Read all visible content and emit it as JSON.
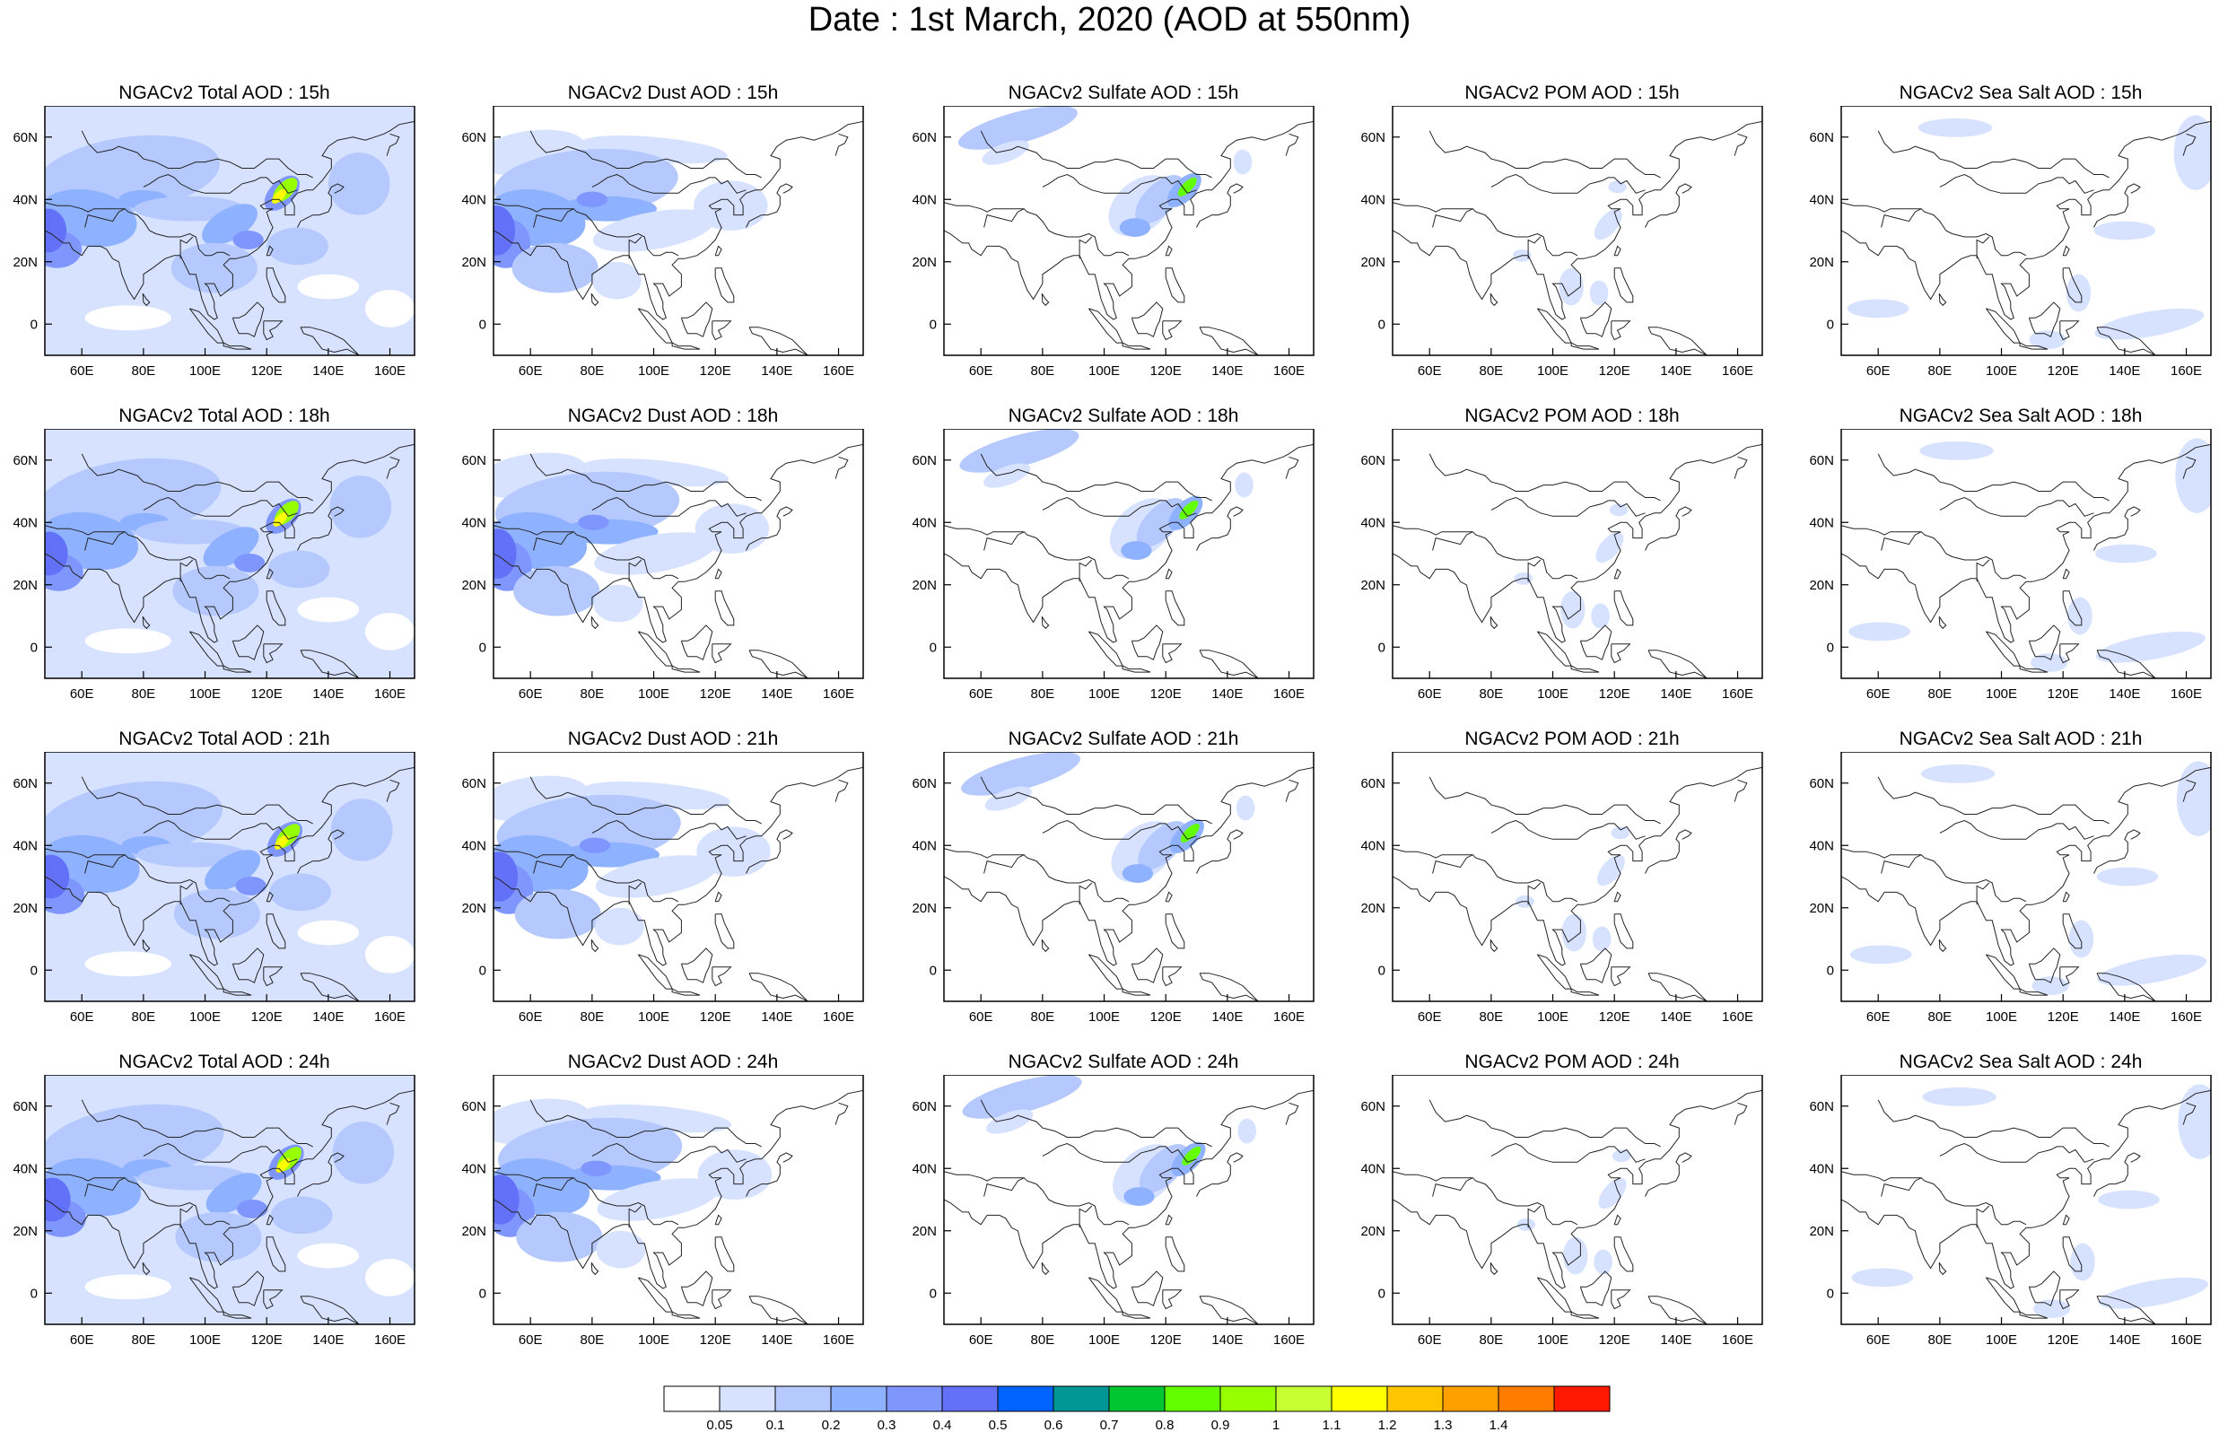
{
  "title": "Date : 1st March, 2020 (AOD at 550nm)",
  "panels": [
    {
      "title": "NGACv2 Total AOD : 15h",
      "species": "total",
      "hour": "15h"
    },
    {
      "title": "NGACv2 Dust AOD : 15h",
      "species": "dust",
      "hour": "15h"
    },
    {
      "title": "NGACv2 Sulfate AOD : 15h",
      "species": "sulfate",
      "hour": "15h"
    },
    {
      "title": "NGACv2 POM AOD : 15h",
      "species": "pom",
      "hour": "15h"
    },
    {
      "title": "NGACv2 Sea Salt AOD : 15h",
      "species": "seasalt",
      "hour": "15h"
    },
    {
      "title": "NGACv2 Total AOD : 18h",
      "species": "total",
      "hour": "18h"
    },
    {
      "title": "NGACv2 Dust AOD : 18h",
      "species": "dust",
      "hour": "18h"
    },
    {
      "title": "NGACv2 Sulfate AOD : 18h",
      "species": "sulfate",
      "hour": "18h"
    },
    {
      "title": "NGACv2 POM AOD : 18h",
      "species": "pom",
      "hour": "18h"
    },
    {
      "title": "NGACv2 Sea Salt AOD : 18h",
      "species": "seasalt",
      "hour": "18h"
    },
    {
      "title": "NGACv2 Total AOD : 21h",
      "species": "total",
      "hour": "21h"
    },
    {
      "title": "NGACv2 Dust AOD : 21h",
      "species": "dust",
      "hour": "21h"
    },
    {
      "title": "NGACv2 Sulfate AOD : 21h",
      "species": "sulfate",
      "hour": "21h"
    },
    {
      "title": "NGACv2 POM AOD : 21h",
      "species": "pom",
      "hour": "21h"
    },
    {
      "title": "NGACv2 Sea Salt AOD : 21h",
      "species": "seasalt",
      "hour": "21h"
    },
    {
      "title": "NGACv2 Total AOD : 24h",
      "species": "total",
      "hour": "24h"
    },
    {
      "title": "NGACv2 Dust AOD : 24h",
      "species": "dust",
      "hour": "24h"
    },
    {
      "title": "NGACv2 Sulfate AOD : 24h",
      "species": "sulfate",
      "hour": "24h"
    },
    {
      "title": "NGACv2 POM AOD : 24h",
      "species": "pom",
      "hour": "24h"
    },
    {
      "title": "NGACv2 Sea Salt  AOD : 24h",
      "species": "seasalt",
      "hour": "24h"
    }
  ],
  "map": {
    "lon_range": [
      48,
      168
    ],
    "lat_range": [
      -10,
      70
    ],
    "lon_ticks": [
      60,
      80,
      100,
      120,
      140,
      160
    ],
    "lon_tick_labels": [
      "60E",
      "80E",
      "100E",
      "120E",
      "140E",
      "160E"
    ],
    "lat_ticks": [
      0,
      20,
      40,
      60
    ],
    "lat_tick_labels": [
      "0",
      "20N",
      "40N",
      "60N"
    ]
  },
  "colorbar": {
    "labels": [
      "0.05",
      "0.1",
      "0.2",
      "0.3",
      "0.4",
      "0.5",
      "0.6",
      "0.7",
      "0.8",
      "0.9",
      "1",
      "1.1",
      "1.2",
      "1.3",
      "1.4"
    ],
    "colors": [
      "#ffffff",
      "#d6e2ff",
      "#b5c9ff",
      "#8eb2ff",
      "#7f96ff",
      "#6370f8",
      "#0063ff",
      "#009696",
      "#00c633",
      "#63ff00",
      "#96ff00",
      "#c6ff33",
      "#ffff00",
      "#ffc600",
      "#ffa000",
      "#ff7c00",
      "#ff1900"
    ]
  }
}
